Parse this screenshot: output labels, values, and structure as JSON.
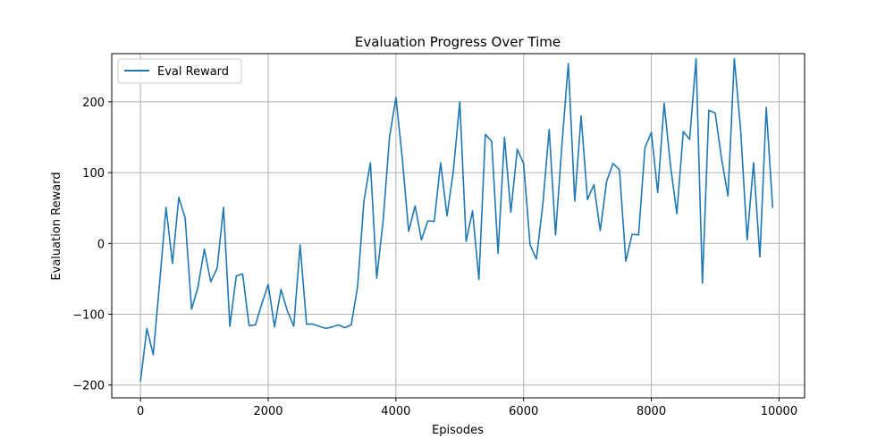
{
  "chart_data": {
    "type": "line",
    "title": "Evaluation Progress Over Time",
    "xlabel": "Episodes",
    "ylabel": "Evaluation Reward",
    "xlim": [
      -450,
      10400
    ],
    "ylim": [
      -218,
      268
    ],
    "xticks": [
      0,
      2000,
      4000,
      6000,
      8000,
      10000
    ],
    "yticks": [
      -200,
      -100,
      0,
      100,
      200
    ],
    "grid": true,
    "legend_position": "top-left",
    "series": [
      {
        "name": "Eval Reward",
        "color": "#1f77b4",
        "x": [
          0,
          100,
          200,
          300,
          400,
          500,
          600,
          700,
          800,
          900,
          1000,
          1100,
          1200,
          1300,
          1400,
          1500,
          1600,
          1700,
          1800,
          1900,
          2000,
          2100,
          2200,
          2300,
          2400,
          2500,
          2600,
          2700,
          2800,
          2900,
          3000,
          3100,
          3200,
          3300,
          3400,
          3500,
          3600,
          3700,
          3800,
          3900,
          4000,
          4100,
          4200,
          4300,
          4400,
          4500,
          4600,
          4700,
          4800,
          4900,
          5000,
          5100,
          5200,
          5300,
          5400,
          5500,
          5600,
          5700,
          5800,
          5900,
          6000,
          6100,
          6200,
          6300,
          6400,
          6500,
          6600,
          6700,
          6800,
          6900,
          7000,
          7100,
          7200,
          7300,
          7400,
          7500,
          7600,
          7700,
          7800,
          7900,
          8000,
          8100,
          8200,
          8300,
          8400,
          8500,
          8600,
          8700,
          8800,
          8900,
          9000,
          9100,
          9200,
          9300,
          9400,
          9500,
          9600,
          9700,
          9800,
          9900
        ],
        "values": [
          -195,
          -120,
          -157,
          -55,
          51,
          -28,
          65,
          36,
          -93,
          -62,
          -8,
          -54,
          -35,
          51,
          -117,
          -46,
          -43,
          -116,
          -115,
          -85,
          -58,
          -118,
          -65,
          -95,
          -117,
          -2,
          -114,
          -114,
          -117,
          -120,
          -118,
          -115,
          -119,
          -115,
          -61,
          60,
          114,
          -49,
          33,
          150,
          206,
          120,
          17,
          53,
          5,
          32,
          31,
          114,
          39,
          102,
          200,
          3,
          46,
          -51,
          154,
          144,
          -14,
          150,
          44,
          133,
          113,
          -2,
          -22,
          54,
          161,
          12,
          140,
          254,
          60,
          180,
          62,
          83,
          18,
          88,
          113,
          104,
          -25,
          13,
          12,
          135,
          157,
          72,
          198,
          110,
          42,
          158,
          147,
          261,
          -56,
          188,
          184,
          120,
          67,
          261,
          158,
          5,
          114,
          -19,
          192,
          50
        ]
      }
    ]
  }
}
